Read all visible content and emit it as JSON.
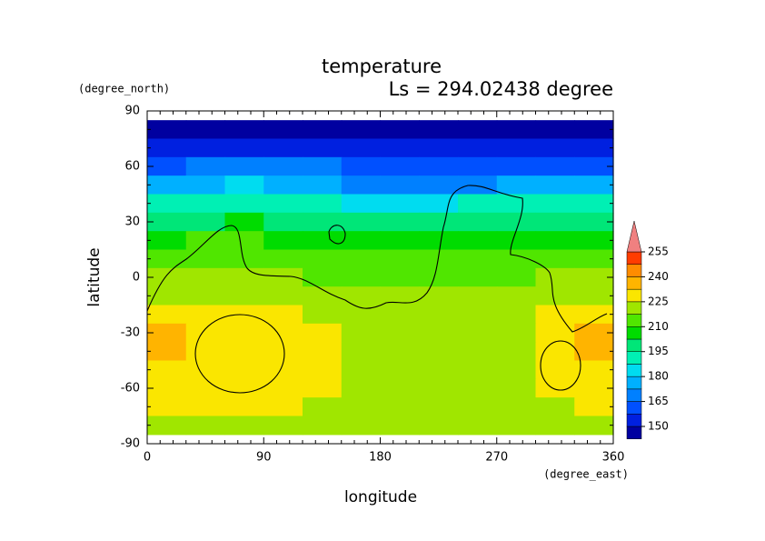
{
  "chart_data": {
    "type": "contour",
    "title": "temperature",
    "subtitle": "Ls = 294.02438 degree",
    "y_unit": "(degree_north)",
    "x_unit": "(degree_east)",
    "ylabel": "latitude",
    "xlabel": "longitude",
    "xlim": [
      0,
      360
    ],
    "ylim": [
      -90,
      90
    ],
    "xticks": [
      0,
      90,
      180,
      270,
      360
    ],
    "yticks": [
      -90,
      -60,
      -30,
      0,
      30,
      60,
      90
    ],
    "lon": [
      15,
      45,
      75,
      105,
      135,
      165,
      195,
      225,
      255,
      285,
      315,
      345
    ],
    "lat": [
      80,
      70,
      60,
      50,
      40,
      30,
      20,
      10,
      0,
      -10,
      -20,
      -30,
      -40,
      -50,
      -60,
      -70,
      -80
    ],
    "z": [
      [
        148,
        148,
        148,
        148,
        148,
        148,
        148,
        148,
        148,
        148,
        148,
        148
      ],
      [
        152,
        152,
        152,
        152,
        152,
        152,
        152,
        152,
        152,
        152,
        152,
        152
      ],
      [
        162,
        165,
        168,
        168,
        165,
        162,
        158,
        158,
        160,
        162,
        162,
        162
      ],
      [
        175,
        178,
        180,
        178,
        175,
        172,
        170,
        172,
        172,
        175,
        175,
        175
      ],
      [
        188,
        190,
        192,
        190,
        188,
        185,
        185,
        185,
        188,
        188,
        190,
        190
      ],
      [
        200,
        202,
        203,
        200,
        198,
        198,
        198,
        198,
        200,
        200,
        200,
        200
      ],
      [
        208,
        210,
        210,
        208,
        206,
        206,
        206,
        205,
        206,
        207,
        207,
        208
      ],
      [
        215,
        215,
        214,
        213,
        213,
        213,
        212,
        212,
        212,
        213,
        214,
        215
      ],
      [
        220,
        219,
        218,
        218,
        217,
        216,
        216,
        215,
        215,
        216,
        218,
        220
      ],
      [
        224,
        223,
        222,
        222,
        221,
        220,
        219,
        218,
        218,
        219,
        221,
        223
      ],
      [
        228,
        226,
        226,
        225,
        224,
        223,
        222,
        222,
        222,
        223,
        226,
        230
      ],
      [
        236,
        228,
        228,
        227,
        226,
        223,
        222,
        222,
        222,
        224,
        228,
        236
      ],
      [
        238,
        230,
        230,
        230,
        227,
        223,
        222,
        222,
        222,
        224,
        230,
        236
      ],
      [
        228,
        228,
        228,
        228,
        226,
        222,
        222,
        222,
        222,
        222,
        228,
        228
      ],
      [
        226,
        226,
        228,
        228,
        226,
        222,
        222,
        222,
        222,
        222,
        226,
        227
      ],
      [
        226,
        226,
        226,
        226,
        222,
        222,
        222,
        222,
        222,
        222,
        224,
        225
      ],
      [
        222,
        222,
        222,
        222,
        222,
        222,
        222,
        222,
        222,
        222,
        222,
        222
      ]
    ],
    "levels": [
      150,
      157.5,
      165,
      172.5,
      180,
      187.5,
      195,
      202.5,
      210,
      217.5,
      225,
      232.5,
      240,
      247.5,
      255
    ],
    "colors": [
      "#0000a0",
      "#0020e0",
      "#0050ff",
      "#0080ff",
      "#00b0ff",
      "#00dcf0",
      "#00f0b4",
      "#00e678",
      "#00dc00",
      "#50e600",
      "#a0e600",
      "#fae600",
      "#ffb400",
      "#ff8c00",
      "#ff3c00",
      "#f08080"
    ],
    "colorbar_ticks": [
      150,
      165,
      180,
      195,
      210,
      225,
      240,
      255
    ]
  }
}
